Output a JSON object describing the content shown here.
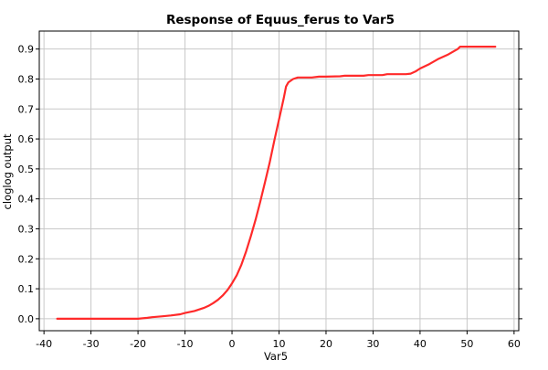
{
  "chart_data": {
    "type": "line",
    "title": "Response of Equus_ferus to Var5",
    "xlabel": "Var5",
    "ylabel": "cloglog output",
    "xlim": [
      -41,
      61
    ],
    "ylim": [
      -0.04,
      0.96
    ],
    "x_ticks": [
      -40,
      -30,
      -20,
      -10,
      0,
      10,
      20,
      30,
      40,
      50,
      60
    ],
    "y_ticks": [
      0.0,
      0.1,
      0.2,
      0.3,
      0.4,
      0.5,
      0.6,
      0.7,
      0.8,
      0.9
    ],
    "x_tick_labels": [
      "-40",
      "-30",
      "-20",
      "-10",
      "0",
      "10",
      "20",
      "30",
      "40",
      "50",
      "60"
    ],
    "y_tick_labels": [
      "0.0",
      "0.1",
      "0.2",
      "0.3",
      "0.4",
      "0.5",
      "0.6",
      "0.7",
      "0.8",
      "0.9"
    ],
    "grid": true,
    "line_color": "#ff2a2a",
    "series": [
      {
        "x": [
          -37.2,
          -30,
          -25,
          -20,
          -19.5,
          -18,
          -17,
          -15,
          -13,
          -11,
          -10,
          -8,
          -6,
          -5,
          -4,
          -3,
          -2,
          -1,
          0,
          1,
          2,
          3,
          4,
          5,
          6,
          7,
          8,
          9,
          10,
          11,
          11.5,
          12,
          13,
          14,
          15,
          17,
          18.5,
          20,
          23,
          24,
          28,
          29,
          32,
          33,
          37,
          38,
          39,
          40,
          42,
          44,
          46,
          48,
          48.5,
          50,
          53,
          56
        ],
        "y": [
          0.0,
          0.0,
          0.0,
          0.0,
          0.001,
          0.003,
          0.005,
          0.008,
          0.011,
          0.015,
          0.019,
          0.026,
          0.036,
          0.043,
          0.052,
          0.063,
          0.077,
          0.095,
          0.118,
          0.145,
          0.18,
          0.225,
          0.275,
          0.33,
          0.39,
          0.455,
          0.52,
          0.595,
          0.665,
          0.735,
          0.775,
          0.789,
          0.8,
          0.805,
          0.805,
          0.805,
          0.808,
          0.808,
          0.809,
          0.811,
          0.811,
          0.813,
          0.813,
          0.816,
          0.816,
          0.818,
          0.825,
          0.835,
          0.85,
          0.868,
          0.882,
          0.9,
          0.908,
          0.908,
          0.908,
          0.908
        ]
      }
    ]
  }
}
